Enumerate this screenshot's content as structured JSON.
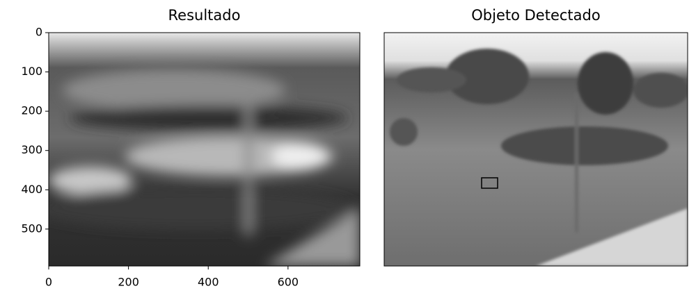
{
  "chart_data": [
    {
      "type": "image",
      "title": "Resultado",
      "xlim": [
        0,
        780
      ],
      "ylim": [
        594,
        0
      ],
      "xticks": [
        0,
        200,
        400,
        600
      ],
      "yticks": [
        0,
        100,
        200,
        300,
        400,
        500
      ]
    },
    {
      "type": "image",
      "title": "Objeto Detectado"
    }
  ]
}
